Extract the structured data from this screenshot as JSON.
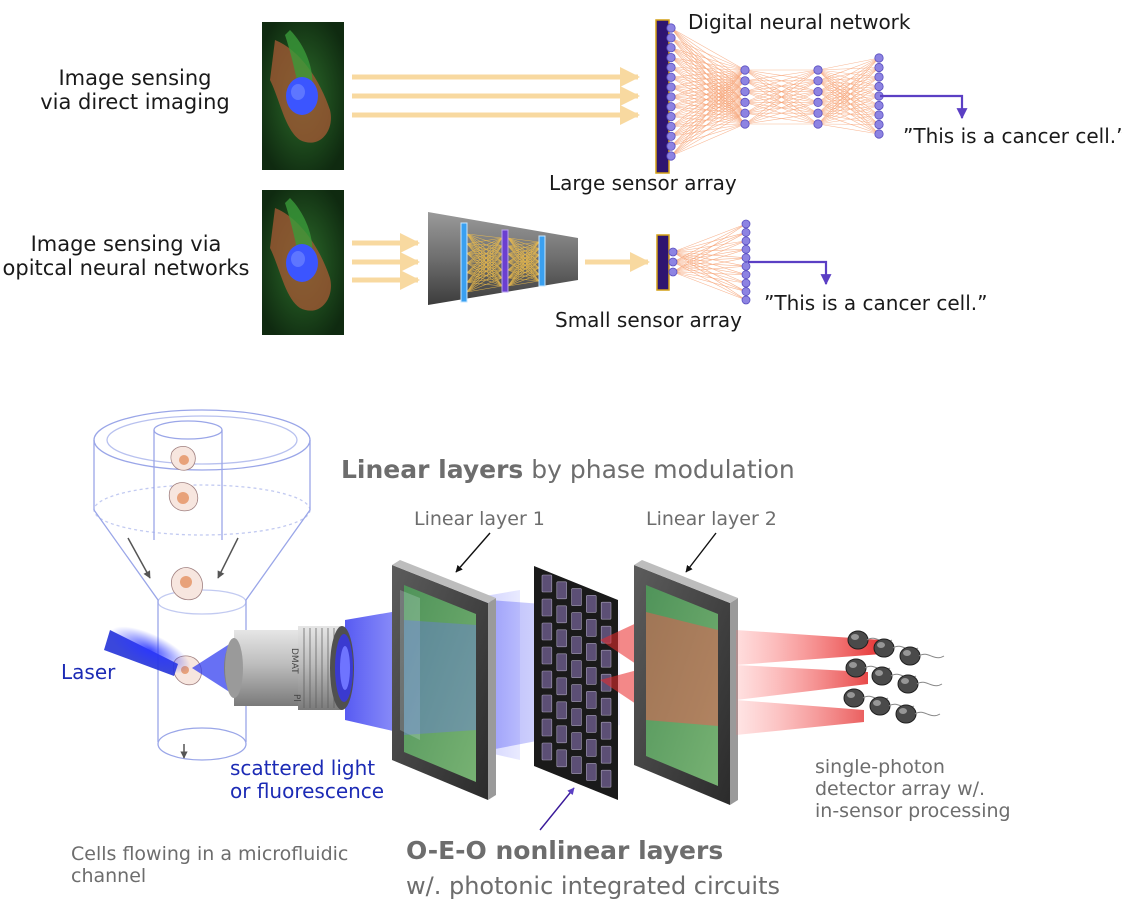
{
  "top": {
    "row1_label": [
      "Image sensing",
      "via direct imaging"
    ],
    "row2_label": [
      "Image sensing via",
      "opitcal neural networks"
    ],
    "digital_nn": "Digital neural network",
    "large_sensor": "Large sensor array",
    "small_sensor": "Small sensor array",
    "output1": "”This is a cancer cell.”",
    "output2": "”This is a cancer cell.”"
  },
  "bottom": {
    "linear_title_bold": "Linear layers",
    "linear_title_rest": " by phase modulation",
    "layer1": "Linear layer 1",
    "layer2": "Linear layer 2",
    "laser": "Laser",
    "scattered": [
      "scattered light",
      "or fluorescence"
    ],
    "cells": [
      "Cells flowing in a microfluidic",
      "channel"
    ],
    "oeo_bold": "O-E-O nonlinear layers",
    "oeo_sub": "w/. photonic integrated circuits",
    "detector": [
      "single-photon",
      "detector array w/.",
      "in-sensor processing"
    ],
    "lens_text": [
      "DMAT",
      "Pl"
    ]
  },
  "colors": {
    "beam": "#f8d9a0",
    "sensor": "#2e1470",
    "node": "#8d83e2",
    "conn": "#f6a173",
    "output_arrow": "#5b3fc4",
    "laser_blue": "#2533d8",
    "red_beam": "#e52222"
  }
}
